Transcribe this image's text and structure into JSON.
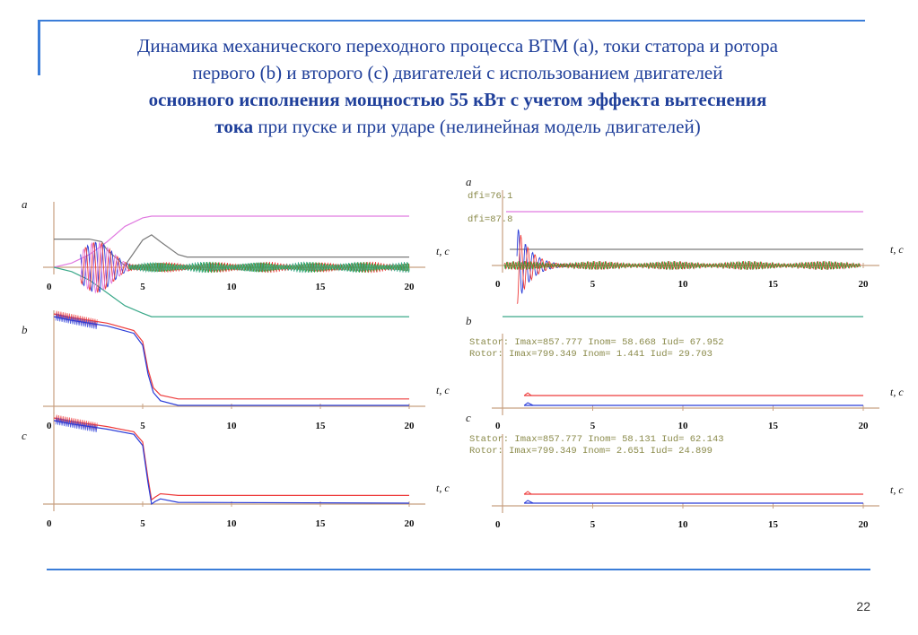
{
  "title": {
    "line1": "Динамика механического переходного процесса ВТМ (a), токи статора и ротора",
    "line2": "первого (b) и второго (c) двигателей с использованием двигателей",
    "line3_bold": "основного исполнения мощностью 55 кВт с учетом эффекта вытеснения",
    "line4_bold": "тока",
    "line4_rest": " при пуске и при ударе (нелинейная модель двигателей)"
  },
  "page_number": "22",
  "colors": {
    "accent": "#3b7dd8",
    "magenta": "#e07ae0",
    "gray": "#7a7a7a",
    "teal": "#3aa889",
    "red": "#ee3b3b",
    "blue": "#2a3cd8",
    "green": "#2ea02e",
    "axis": "#c8a080"
  },
  "chart_data": [
    {
      "type": "line",
      "panel": "left-a",
      "label": "a",
      "xlabel": "t, c",
      "x_ticks": [
        "0",
        "5",
        "10",
        "15",
        "20"
      ],
      "xlim": [
        0,
        20
      ],
      "series": [
        {
          "color": "magenta",
          "x": [
            0,
            1,
            2,
            3,
            4,
            5,
            5.5,
            6,
            20
          ],
          "y": [
            0,
            0.05,
            0.15,
            0.3,
            0.48,
            0.58,
            0.6,
            0.6,
            0.6
          ]
        },
        {
          "color": "gray",
          "x": [
            0,
            1,
            2,
            2.7,
            3,
            4,
            5,
            5.5,
            6,
            7,
            7.5,
            20
          ],
          "y": [
            0.33,
            0.33,
            0.33,
            0.3,
            0.2,
            0.02,
            0.32,
            0.38,
            0.3,
            0.15,
            0.12,
            0.12
          ]
        },
        {
          "color": "teal",
          "x": [
            0,
            1,
            2,
            3,
            4,
            5,
            5.5,
            6,
            20
          ],
          "y": [
            0,
            -0.05,
            -0.15,
            -0.3,
            -0.45,
            -0.54,
            -0.58,
            -0.58,
            -0.58
          ]
        }
      ]
    },
    {
      "type": "line",
      "panel": "left-b",
      "label": "b",
      "xlabel": "t, c",
      "x_ticks": [
        "0",
        "5",
        "10",
        "15",
        "20"
      ],
      "xlim": [
        0,
        20
      ],
      "series": [
        {
          "color": "red",
          "x": [
            0,
            1,
            3,
            4.5,
            5,
            5.3,
            5.6,
            6,
            7,
            20
          ],
          "y": [
            1,
            0.96,
            0.9,
            0.82,
            0.7,
            0.4,
            0.2,
            0.12,
            0.08,
            0.08
          ]
        },
        {
          "color": "blue",
          "x": [
            0,
            1,
            3,
            4.5,
            5,
            5.3,
            5.6,
            6,
            7,
            20
          ],
          "y": [
            0.97,
            0.93,
            0.87,
            0.79,
            0.66,
            0.35,
            0.15,
            0.06,
            0.01,
            0.01
          ]
        }
      ]
    },
    {
      "type": "line",
      "panel": "left-c",
      "label": "c",
      "xlabel": "t, c",
      "x_ticks": [
        "0",
        "5",
        "10",
        "15",
        "20"
      ],
      "xlim": [
        0,
        20
      ],
      "series": [
        {
          "color": "red",
          "x": [
            0,
            1,
            3,
            4.5,
            5,
            5.3,
            5.5,
            5.7,
            6,
            7,
            20
          ],
          "y": [
            1,
            0.96,
            0.9,
            0.84,
            0.72,
            0.3,
            0.05,
            0.08,
            0.12,
            0.1,
            0.1
          ]
        },
        {
          "color": "blue",
          "x": [
            0,
            1,
            3,
            4.5,
            5,
            5.3,
            5.5,
            5.7,
            6,
            7,
            20
          ],
          "y": [
            0.97,
            0.93,
            0.87,
            0.81,
            0.68,
            0.25,
            0.0,
            0.03,
            0.06,
            0.02,
            0.01
          ]
        }
      ]
    },
    {
      "type": "line",
      "panel": "right-a",
      "label": "a",
      "annotations": [
        "dfi=76.1",
        "dfi=87.8"
      ],
      "xlabel": "t, c",
      "x_ticks": [
        "0",
        "5",
        "10",
        "15",
        "20"
      ],
      "xlim": [
        0,
        20
      ]
    },
    {
      "type": "line",
      "panel": "right-b",
      "label": "b",
      "annotations": [
        "Stator: Imax=857.777 Inom= 58.668 Iud= 67.952",
        "Rotor: Imax=799.349 Inom=  1.441 Iud= 29.703"
      ],
      "xlabel": "t, c",
      "x_ticks": [
        "0",
        "5",
        "10",
        "15",
        "20"
      ],
      "xlim": [
        0,
        20
      ]
    },
    {
      "type": "line",
      "panel": "right-c",
      "label": "c",
      "annotations": [
        "Stator: Imax=857.777 Inom= 58.131 Iud= 62.143",
        "Rotor: Imax=799.349 Inom=  2.651 Iud= 24.899"
      ],
      "xlabel": "t, c",
      "x_ticks": [
        "0",
        "5",
        "10",
        "15",
        "20"
      ],
      "xlim": [
        0,
        20
      ]
    }
  ]
}
